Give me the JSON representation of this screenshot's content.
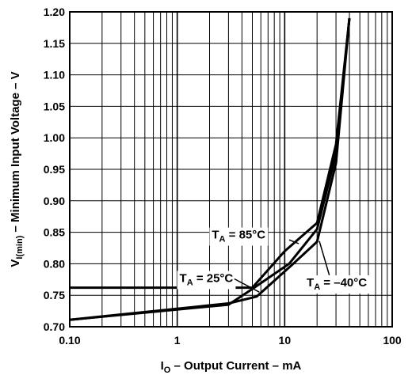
{
  "chart_data": {
    "type": "line",
    "xscale": "log",
    "xlim": [
      0.1,
      100
    ],
    "ylim": [
      0.7,
      1.2
    ],
    "xticks": [
      "0.10",
      "1",
      "10",
      "100"
    ],
    "yticks": [
      "0.70",
      "0.75",
      "0.80",
      "0.85",
      "0.90",
      "0.95",
      "1.00",
      "1.05",
      "1.10",
      "1.15",
      "1.20"
    ],
    "grid": true,
    "xlabel": {
      "main": "I",
      "sub": "O",
      "rest": " – Output Current – mA"
    },
    "ylabel": {
      "main": "V",
      "sub": "I(min)",
      "rest": " – Minimum Input Voltage – V"
    },
    "series": [
      {
        "name": "T = 85°C",
        "x": [
          0.1,
          5,
          10,
          20,
          30,
          40
        ],
        "y": [
          0.762,
          0.762,
          0.82,
          0.865,
          0.99,
          1.19
        ]
      },
      {
        "name": "T = 25°C",
        "x": [
          0.1,
          3,
          5,
          11,
          20,
          30,
          40
        ],
        "y": [
          0.711,
          0.735,
          0.76,
          0.8,
          0.855,
          0.975,
          1.19
        ]
      },
      {
        "name": "T = –40°C",
        "x": [
          0.1,
          3,
          5.5,
          12,
          20,
          30,
          40
        ],
        "y": [
          0.711,
          0.737,
          0.748,
          0.8,
          0.835,
          0.96,
          1.19
        ]
      }
    ],
    "annotations": [
      {
        "main": "T",
        "sub": "A",
        "rest": " = 85°C"
      },
      {
        "main": "T",
        "sub": "A",
        "rest": " = 25°C"
      },
      {
        "main": "T",
        "sub": "A",
        "rest": " = –40°C"
      }
    ]
  }
}
